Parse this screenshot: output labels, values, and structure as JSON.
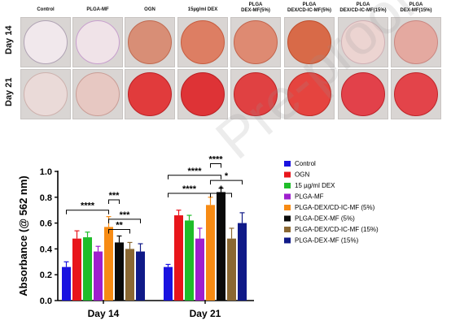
{
  "panel": {
    "columns": [
      "Control",
      "PLGA-MF",
      "OGN",
      "15µg/ml DEX",
      "PLGA\nDEX-MF(5%)",
      "PLGA\nDEX/CD-IC-MF(5%)",
      "PLGA\nDEX/CD-IC-MF(15%)",
      "PLGA\nDEX-MF(15%)"
    ],
    "rows": [
      "Day 14",
      "Day 21"
    ],
    "well_colors": [
      [
        "#f1e8ec",
        "#f0e3e8",
        "#d88e76",
        "#dd7e63",
        "#de8a72",
        "#d86a48",
        "#ecd4d1",
        "#e4a9a0"
      ],
      [
        "#eadad8",
        "#e7c8c2",
        "#e13b3c",
        "#de3336",
        "#e04142",
        "#e5443f",
        "#e2414a",
        "#e3444a"
      ]
    ],
    "rim_colors": [
      [
        "#b0a3b4",
        "#c79fcd",
        "#c06a50",
        "#c65c3f",
        "#c2644c",
        "#bf4e2c",
        "#cfb0b5",
        "#c98781"
      ],
      [
        "#cdb1ad",
        "#c99d96",
        "#bd2024",
        "#b81f22",
        "#bc2325",
        "#bf2824",
        "#bd2229",
        "#bf262a"
      ]
    ]
  },
  "chart_data": {
    "type": "bar",
    "categories": [
      "Day 14",
      "Day 21"
    ],
    "ylabel": "Absorbance (@ 562 nm)",
    "ylim": [
      0.0,
      1.0
    ],
    "yticks": [
      "0.0",
      "0.2",
      "0.4",
      "0.6",
      "0.8",
      "1.0"
    ],
    "series": [
      {
        "name": "Control",
        "color": "#1a12e0",
        "values": [
          0.26,
          0.26
        ],
        "errors": [
          0.04,
          0.02
        ]
      },
      {
        "name": "OGN",
        "color": "#e8151b",
        "values": [
          0.48,
          0.66
        ],
        "errors": [
          0.06,
          0.04
        ]
      },
      {
        "name": "15 µg/ml DEX",
        "color": "#1fbd2a",
        "values": [
          0.49,
          0.62
        ],
        "errors": [
          0.04,
          0.04
        ]
      },
      {
        "name": "PLGA-MF",
        "color": "#9f1fce",
        "values": [
          0.38,
          0.48
        ],
        "errors": [
          0.04,
          0.08
        ]
      },
      {
        "name": "PLGA-DEX/CD-IC-MF (5%)",
        "color": "#f78b14",
        "values": [
          0.57,
          0.74
        ],
        "errors": [
          0.08,
          0.06
        ]
      },
      {
        "name": "PLGA-DEX-MF (5%)",
        "color": "#0a0a0a",
        "values": [
          0.45,
          0.84
        ],
        "errors": [
          0.05,
          0.03
        ]
      },
      {
        "name": "PLGA-DEX/CD-IC-MF (15%)",
        "color": "#8a6732",
        "values": [
          0.4,
          0.48
        ],
        "errors": [
          0.05,
          0.08
        ]
      },
      {
        "name": "PLGA-DEX-MF (15%)",
        "color": "#101a88",
        "values": [
          0.38,
          0.6
        ],
        "errors": [
          0.06,
          0.08
        ]
      }
    ],
    "significance": [
      {
        "group": 0,
        "from": 0,
        "to": 4,
        "label": "****"
      },
      {
        "group": 0,
        "from": 4,
        "to": 5,
        "label": "***"
      },
      {
        "group": 0,
        "from": 4,
        "to": 7,
        "label": "***"
      },
      {
        "group": 0,
        "from": 4,
        "to": 6,
        "label": "**"
      },
      {
        "group": 1,
        "from": 0,
        "to": 5,
        "label": "****"
      },
      {
        "group": 1,
        "from": 4,
        "to": 5,
        "label": "****"
      },
      {
        "group": 1,
        "from": 4,
        "to": 7,
        "label": "*"
      },
      {
        "group": 1,
        "from": 0,
        "to": 4,
        "label": "****"
      },
      {
        "group": 1,
        "from": 4,
        "to": 6,
        "label": "*"
      }
    ],
    "legend_position": "right"
  },
  "watermark": "Pre-proof"
}
